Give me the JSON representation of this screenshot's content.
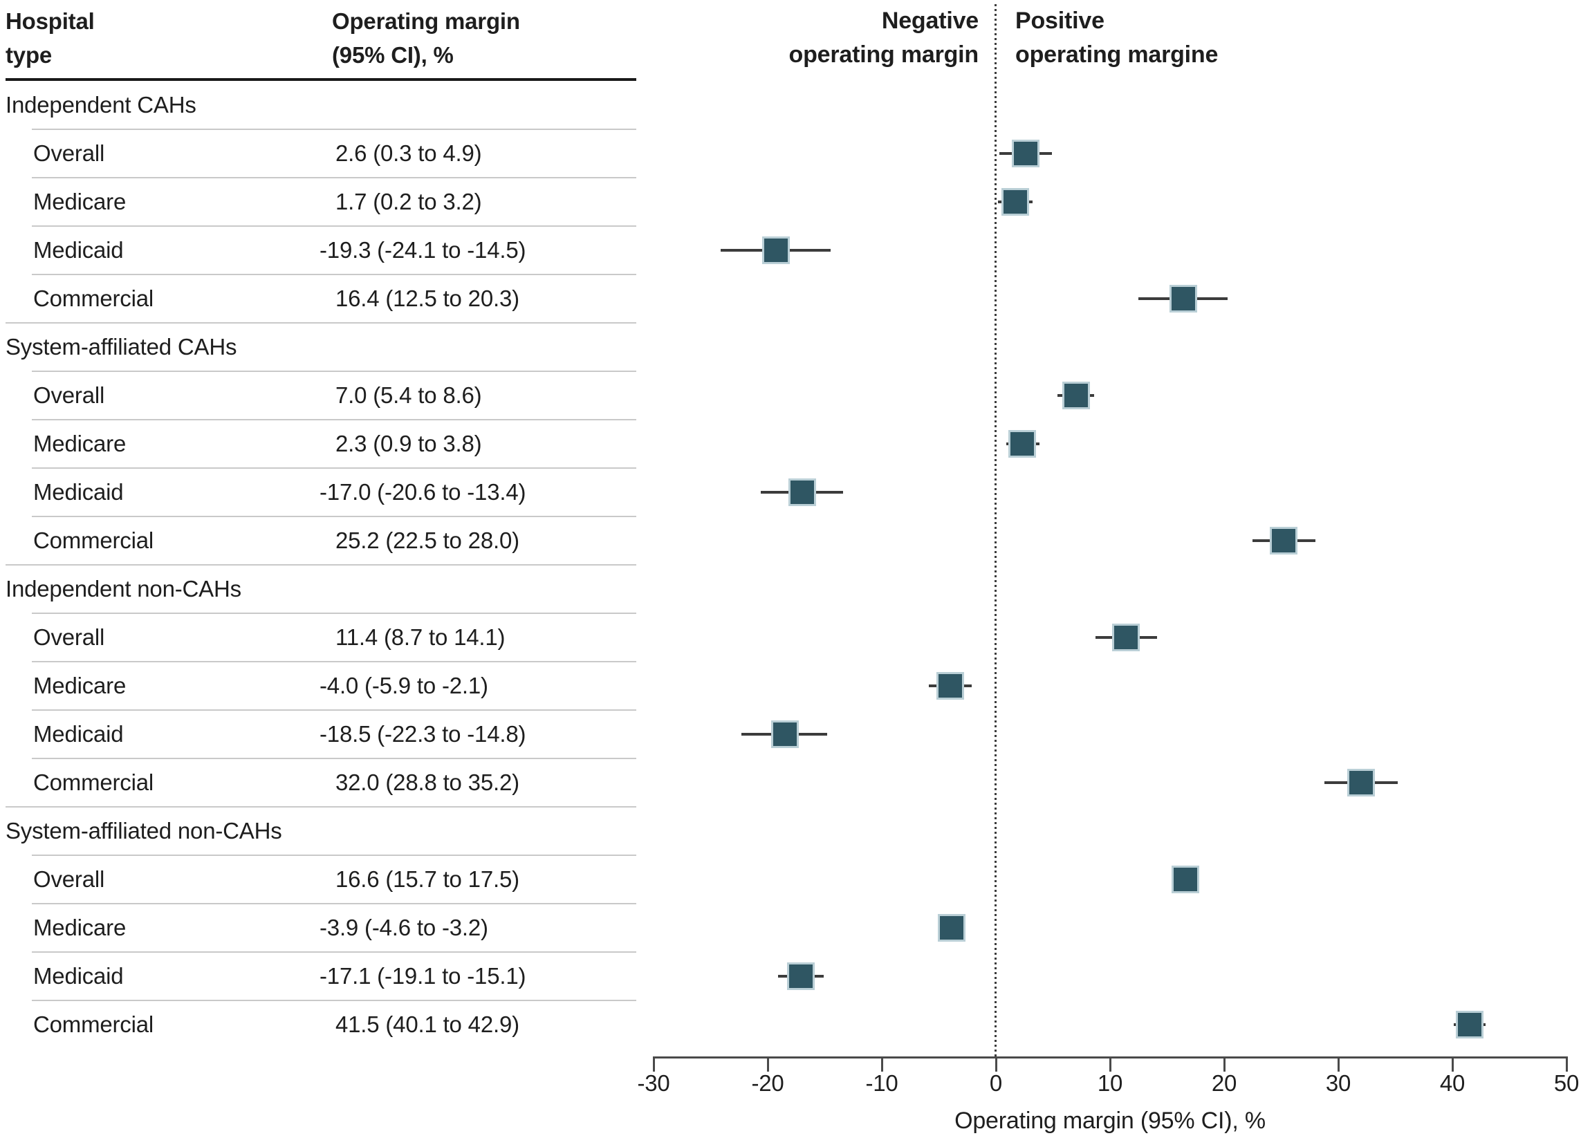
{
  "table": {
    "col1_header_line1": "Hospital",
    "col1_header_line2": "type",
    "col2_header_line1": "Operating margin",
    "col2_header_line2": "(95% CI), %"
  },
  "plot": {
    "negative_header_line1": "Negative",
    "negative_header_line2": "operating margin",
    "positive_header_line1": "Positive",
    "positive_header_line2": "operating margine"
  },
  "colors": {
    "marker_fill": "#2F5663",
    "marker_border": "#BACFD6",
    "ci_line": "#3C3C3C",
    "axis_line": "#4A4A4A",
    "heavy_rule": "#1A1A1A",
    "light_rule": "#C9C9C9",
    "text": "#1E1E1E"
  },
  "chart_data": {
    "type": "forest",
    "xlabel": "Operating margin (95% CI), %",
    "xlim": [
      -30,
      50
    ],
    "xticks": [
      -30,
      -20,
      -10,
      0,
      10,
      20,
      30,
      40,
      50
    ],
    "zero_reference_line": 0,
    "grid": false,
    "groups": [
      {
        "label": "Independent CAHs",
        "rows": [
          {
            "label": "Overall",
            "text": "2.6 (0.3 to 4.9)",
            "value": 2.6,
            "lo": 0.3,
            "hi": 4.9
          },
          {
            "label": "Medicare",
            "text": "1.7 (0.2 to 3.2)",
            "value": 1.7,
            "lo": 0.2,
            "hi": 3.2
          },
          {
            "label": "Medicaid",
            "text": "-19.3 (-24.1 to -14.5)",
            "value": -19.3,
            "lo": -24.1,
            "hi": -14.5
          },
          {
            "label": "Commercial",
            "text": "16.4 (12.5 to 20.3)",
            "value": 16.4,
            "lo": 12.5,
            "hi": 20.3
          }
        ]
      },
      {
        "label": "System-affiliated CAHs",
        "rows": [
          {
            "label": "Overall",
            "text": "7.0 (5.4 to 8.6)",
            "value": 7.0,
            "lo": 5.4,
            "hi": 8.6
          },
          {
            "label": "Medicare",
            "text": "2.3 (0.9 to 3.8)",
            "value": 2.3,
            "lo": 0.9,
            "hi": 3.8
          },
          {
            "label": "Medicaid",
            "text": "-17.0 (-20.6 to -13.4)",
            "value": -17.0,
            "lo": -20.6,
            "hi": -13.4
          },
          {
            "label": "Commercial",
            "text": "25.2 (22.5 to 28.0)",
            "value": 25.2,
            "lo": 22.5,
            "hi": 28.0
          }
        ]
      },
      {
        "label": "Independent non-CAHs",
        "rows": [
          {
            "label": "Overall",
            "text": "11.4 (8.7 to 14.1)",
            "value": 11.4,
            "lo": 8.7,
            "hi": 14.1
          },
          {
            "label": "Medicare",
            "text": "-4.0 (-5.9 to -2.1)",
            "value": -4.0,
            "lo": -5.9,
            "hi": -2.1
          },
          {
            "label": "Medicaid",
            "text": "-18.5 (-22.3 to -14.8)",
            "value": -18.5,
            "lo": -22.3,
            "hi": -14.8
          },
          {
            "label": "Commercial",
            "text": "32.0 (28.8 to 35.2)",
            "value": 32.0,
            "lo": 28.8,
            "hi": 35.2
          }
        ]
      },
      {
        "label": "System-affiliated non-CAHs",
        "rows": [
          {
            "label": "Overall",
            "text": "16.6 (15.7 to 17.5)",
            "value": 16.6,
            "lo": 15.7,
            "hi": 17.5
          },
          {
            "label": "Medicare",
            "text": "-3.9 (-4.6 to -3.2)",
            "value": -3.9,
            "lo": -4.6,
            "hi": -3.2
          },
          {
            "label": "Medicaid",
            "text": "-17.1 (-19.1 to -15.1)",
            "value": -17.1,
            "lo": -19.1,
            "hi": -15.1
          },
          {
            "label": "Commercial",
            "text": "41.5 (40.1 to 42.9)",
            "value": 41.5,
            "lo": 40.1,
            "hi": 42.9
          }
        ]
      }
    ]
  }
}
